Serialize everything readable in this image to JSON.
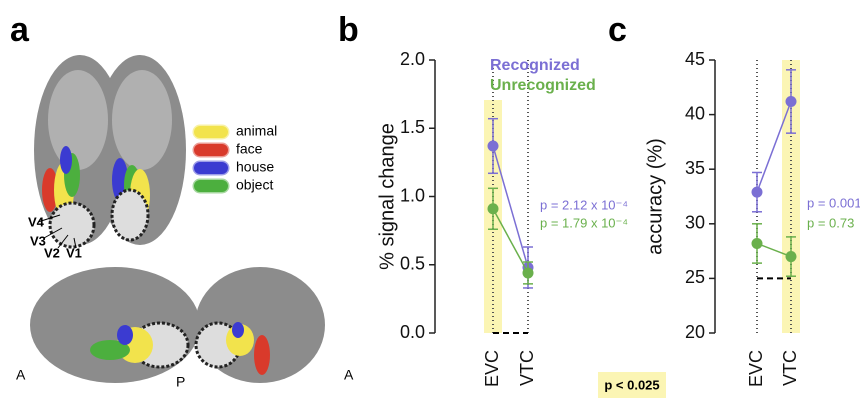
{
  "panels": [
    "a",
    "b",
    "c"
  ],
  "panel_a": {
    "legend": [
      {
        "label": "animal",
        "color": "#f2e34c"
      },
      {
        "label": "face",
        "color": "#d93a2b"
      },
      {
        "label": "house",
        "color": "#3b3bd1"
      },
      {
        "label": "object",
        "color": "#4caf3e"
      }
    ],
    "labels": [
      "V4",
      "V3",
      "V2",
      "V1",
      "A",
      "P",
      "A"
    ]
  },
  "significance_note": "p < 0.025",
  "chart_data": [
    {
      "type": "line",
      "y_label": "% signal change",
      "categories": [
        "EVC",
        "VTC"
      ],
      "ylim": [
        0,
        2
      ],
      "yticks": [
        {
          "value": 0,
          "label": "0.0"
        },
        {
          "value": 0.5,
          "label": "0.5"
        },
        {
          "value": 1,
          "label": "1.0"
        },
        {
          "value": 1.5,
          "label": "1.5"
        },
        {
          "value": 2,
          "label": "2.0"
        }
      ],
      "reference_line": 0,
      "highlight_index": 0,
      "series": [
        {
          "name": "Recognized",
          "color": "#7b6fd4",
          "values": [
            1.37,
            0.48
          ],
          "errors": [
            0.2,
            0.15
          ],
          "p_label": "p = 2.12 x 10⁻⁴"
        },
        {
          "name": "Unrecognized",
          "color": "#6ab04c",
          "values": [
            0.91,
            0.44
          ],
          "errors": [
            0.15,
            0.08
          ],
          "p_label": "p = 1.79 x 10⁻⁴"
        }
      ]
    },
    {
      "type": "line",
      "y_label": "accuracy (%)",
      "categories": [
        "EVC",
        "VTC"
      ],
      "ylim": [
        20,
        45
      ],
      "yticks": [
        20,
        25,
        30,
        35,
        40,
        45
      ],
      "reference_line": 25,
      "highlight_index": 1,
      "series": [
        {
          "color": "#7b6fd4",
          "values": [
            32.9,
            41.2
          ],
          "errors": [
            1.8,
            2.9
          ],
          "p_label": "p = 0.001"
        },
        {
          "color": "#6ab04c",
          "values": [
            28.2,
            27.0
          ],
          "errors": [
            1.8,
            1.8
          ],
          "p_label": "p = 0.73"
        }
      ]
    }
  ]
}
